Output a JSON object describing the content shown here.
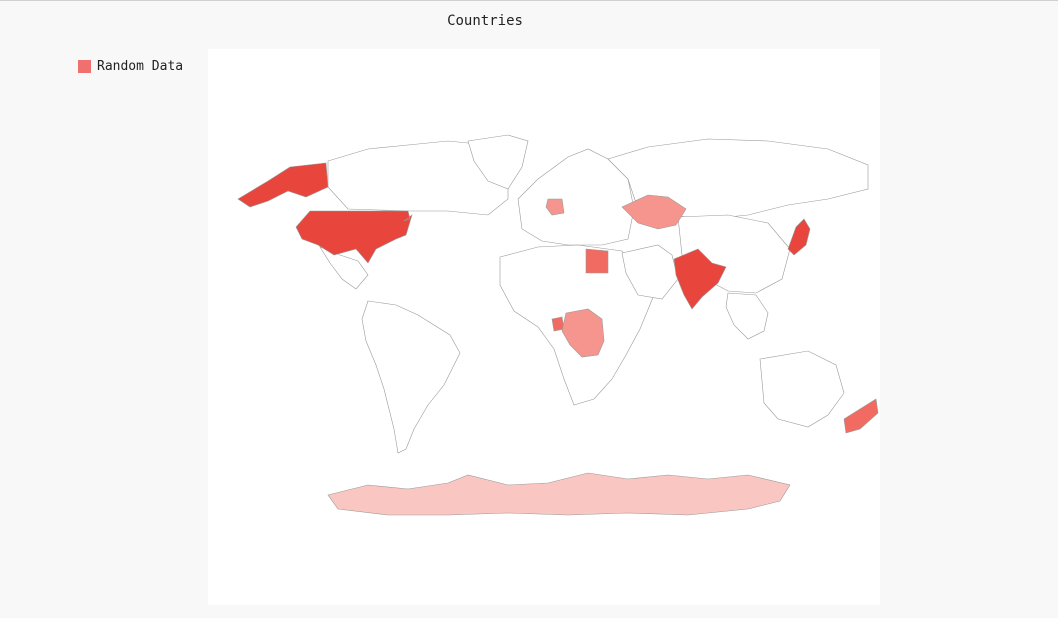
{
  "chart": {
    "title": "Countries",
    "legend_label": "Random Data",
    "legend_color": "#f07070",
    "type": "choropleth-world-map",
    "colors": {
      "strong": "#e8453c",
      "medium": "#f26b62",
      "light": "#f5958e",
      "faint": "#f9c6c2",
      "border": "#9a9a9a",
      "plot_bg": "#ffffff",
      "page_bg": "#f8f8f8"
    }
  },
  "chart_data": {
    "type": "heatmap",
    "title": "Countries",
    "legend": [
      "Random Data"
    ],
    "highlighted_regions": [
      {
        "region": "united-states",
        "shade": "strong"
      },
      {
        "region": "alaska",
        "shade": "strong"
      },
      {
        "region": "india",
        "shade": "strong"
      },
      {
        "region": "japan",
        "shade": "strong"
      },
      {
        "region": "new-zealand",
        "shade": "medium"
      },
      {
        "region": "egypt",
        "shade": "medium"
      },
      {
        "region": "germany",
        "shade": "light"
      },
      {
        "region": "kazakhstan",
        "shade": "light"
      },
      {
        "region": "dr-congo",
        "shade": "light"
      },
      {
        "region": "gabon",
        "shade": "medium"
      },
      {
        "region": "antarctica",
        "shade": "faint"
      }
    ]
  }
}
